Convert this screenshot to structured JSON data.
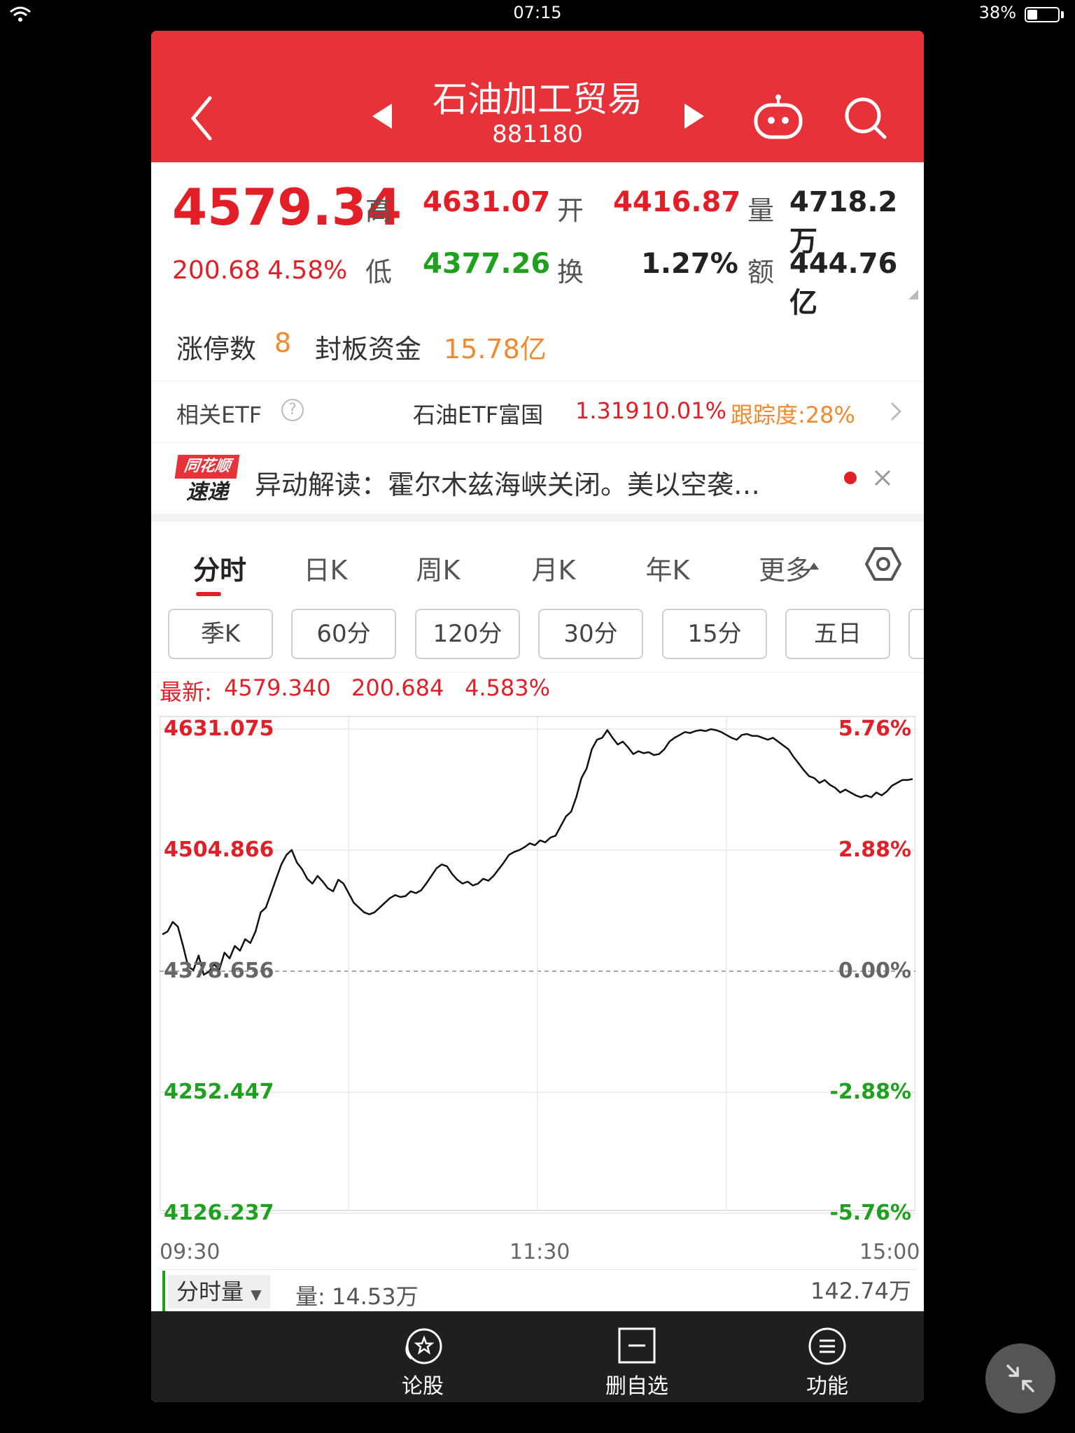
{
  "status": {
    "time": "07:15",
    "battery": "38%"
  },
  "header": {
    "title": "石油加工贸易",
    "code": "881180"
  },
  "quote": {
    "price": "4579.34",
    "change": "200.68",
    "change_pct": "4.58%",
    "high_label": "高",
    "high": "4631.07",
    "open_label": "开",
    "open": "4416.87",
    "volume_label": "量",
    "volume": "4718.2万",
    "low_label": "低",
    "low": "4377.26",
    "turnover_label": "换",
    "turnover": "1.27%",
    "amount_label": "额",
    "amount": "444.76亿"
  },
  "limit": {
    "count_label": "涨停数",
    "count": "8",
    "fund_label": "封板资金",
    "fund": "15.78亿"
  },
  "etf": {
    "label": "相关ETF",
    "help": "?",
    "name": "石油ETF富国",
    "price": "1.319",
    "pct": "10.01%",
    "tracking": "跟踪度:28%"
  },
  "news": {
    "logo_top": "同花顺",
    "logo_bottom": "速递",
    "text": "异动解读：霍尔木兹海峡关闭。美以空袭…"
  },
  "tabs": [
    "分时",
    "日K",
    "周K",
    "月K",
    "年K",
    "更多"
  ],
  "chips": [
    "季K",
    "60分",
    "120分",
    "30分",
    "15分",
    "五日"
  ],
  "chart_info": {
    "latest_label": "最新:",
    "latest": "4579.340",
    "change": "200.684",
    "pct": "4.583%"
  },
  "chart_data": {
    "type": "line",
    "y_ticks_left": [
      "4631.075",
      "4504.866",
      "4378.656",
      "4252.447",
      "4126.237"
    ],
    "y_ticks_right": [
      "5.76%",
      "2.88%",
      "0.00%",
      "-2.88%",
      "-5.76%"
    ],
    "x_ticks": [
      "09:30",
      "11:30",
      "15:00"
    ],
    "ylim": [
      4126.237,
      4631.075
    ],
    "base": 4378.656,
    "series": [
      {
        "values": [
          4417,
          4420,
          4430,
          4425,
          4405,
          4383,
          4380,
          4395,
          4375,
          4378,
          4386,
          4380,
          4398,
          4392,
          4405,
          4400,
          4412,
          4408,
          4420,
          4440,
          4445,
          4460,
          4475,
          4490,
          4500,
          4505,
          4492,
          4485,
          4475,
          4470,
          4478,
          4472,
          4465,
          4462,
          4474,
          4470,
          4460,
          4450,
          4445,
          4440,
          4438,
          4440,
          4445,
          4450,
          4455,
          4458,
          4456,
          4457,
          4462,
          4460,
          4463,
          4470,
          4478,
          4486,
          4490,
          4488,
          4480,
          4474,
          4470,
          4472,
          4468,
          4470,
          4475,
          4473,
          4478,
          4485,
          4492,
          4500,
          4503,
          4505,
          4508,
          4512,
          4510,
          4515,
          4513,
          4518,
          4520,
          4530,
          4540,
          4545,
          4560,
          4580,
          4590,
          4610,
          4620,
          4622,
          4630,
          4622,
          4615,
          4618,
          4612,
          4605,
          4608,
          4606,
          4607,
          4604,
          4605,
          4610,
          4618,
          4622,
          4625,
          4628,
          4627,
          4629,
          4630,
          4629,
          4631,
          4630,
          4628,
          4625,
          4622,
          4620,
          4625,
          4626,
          4624,
          4624,
          4622,
          4620,
          4622,
          4618,
          4614,
          4610,
          4602,
          4595,
          4588,
          4582,
          4580,
          4575,
          4578,
          4573,
          4570,
          4565,
          4568,
          4565,
          4562,
          4560,
          4562,
          4560,
          4565,
          4562,
          4566,
          4572,
          4575,
          4578,
          4578,
          4579
        ]
      }
    ]
  },
  "volume_bar": {
    "label": "分时量",
    "vol_label": "量:",
    "vol": "14.53万",
    "max": "142.74万"
  },
  "nav": [
    "论股",
    "删自选",
    "功能"
  ]
}
